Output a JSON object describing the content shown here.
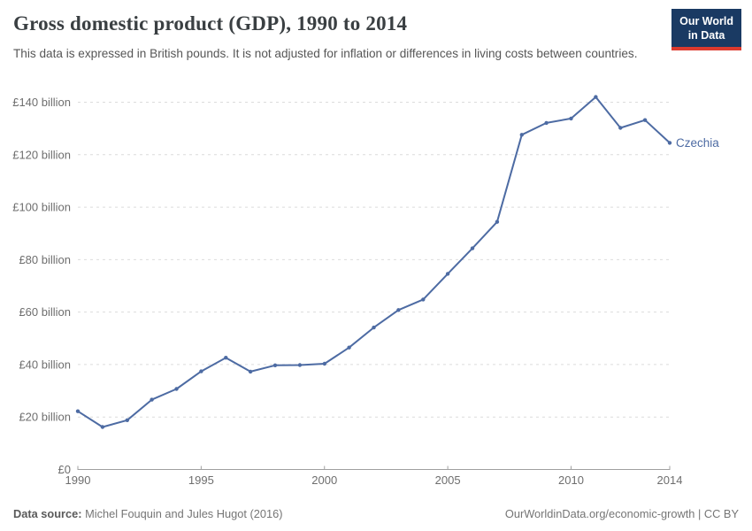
{
  "header": {
    "title": "Gross domestic product (GDP), 1990 to 2014",
    "subtitle": "This data is expressed in British pounds. It is not adjusted for inflation or differences in living costs between countries.",
    "logo": {
      "line1": "Our World",
      "line2": "in Data",
      "bg_color": "#1a3a63",
      "accent_color": "#dc3a2e"
    }
  },
  "chart_data": {
    "type": "line",
    "title": "Gross domestic product (GDP), 1990 to 2014",
    "unit": "British pounds (billions)",
    "xlabel": "",
    "ylabel": "",
    "xlim": [
      1990,
      2014
    ],
    "ylim": [
      0,
      142
    ],
    "grid": "horizontal-dashed",
    "legend_position": "end-of-line-label",
    "x": [
      1990,
      1991,
      1992,
      1993,
      1994,
      1995,
      1996,
      1997,
      1998,
      1999,
      2000,
      2001,
      2002,
      2003,
      2004,
      2005,
      2006,
      2007,
      2008,
      2009,
      2010,
      2011,
      2012,
      2013,
      2014
    ],
    "series": [
      {
        "name": "Czechia",
        "color": "#4d6ba3",
        "values": [
          22.2,
          16.2,
          18.8,
          26.6,
          30.7,
          37.4,
          42.6,
          37.3,
          39.7,
          39.8,
          40.3,
          46.5,
          54.1,
          60.8,
          64.8,
          74.6,
          84.3,
          94.4,
          127.6,
          132.1,
          133.8,
          142.0,
          130.2,
          133.2,
          124.5
        ]
      }
    ],
    "xticks": [
      {
        "value": 1990,
        "label": "1990"
      },
      {
        "value": 1995,
        "label": "1995"
      },
      {
        "value": 2000,
        "label": "2000"
      },
      {
        "value": 2005,
        "label": "2005"
      },
      {
        "value": 2010,
        "label": "2010"
      },
      {
        "value": 2014,
        "label": "2014"
      }
    ],
    "yticks": [
      {
        "value": 0,
        "label": "£0"
      },
      {
        "value": 20,
        "label": "£20 billion"
      },
      {
        "value": 40,
        "label": "£40 billion"
      },
      {
        "value": 60,
        "label": "£60 billion"
      },
      {
        "value": 80,
        "label": "£80 billion"
      },
      {
        "value": 100,
        "label": "£100 billion"
      },
      {
        "value": 120,
        "label": "£120 billion"
      },
      {
        "value": 140,
        "label": "£140 billion"
      }
    ],
    "colors": {
      "gridline": "#dcdcdc",
      "axis_line": "#a0a0a0",
      "tick_label": "#6e6e6e"
    }
  },
  "footer": {
    "data_source_label": "Data source:",
    "data_source_value": "Michel Fouquin and Jules Hugot (2016)",
    "url": "OurWorldinData.org/economic-growth",
    "separator": "|",
    "license": "CC BY"
  }
}
